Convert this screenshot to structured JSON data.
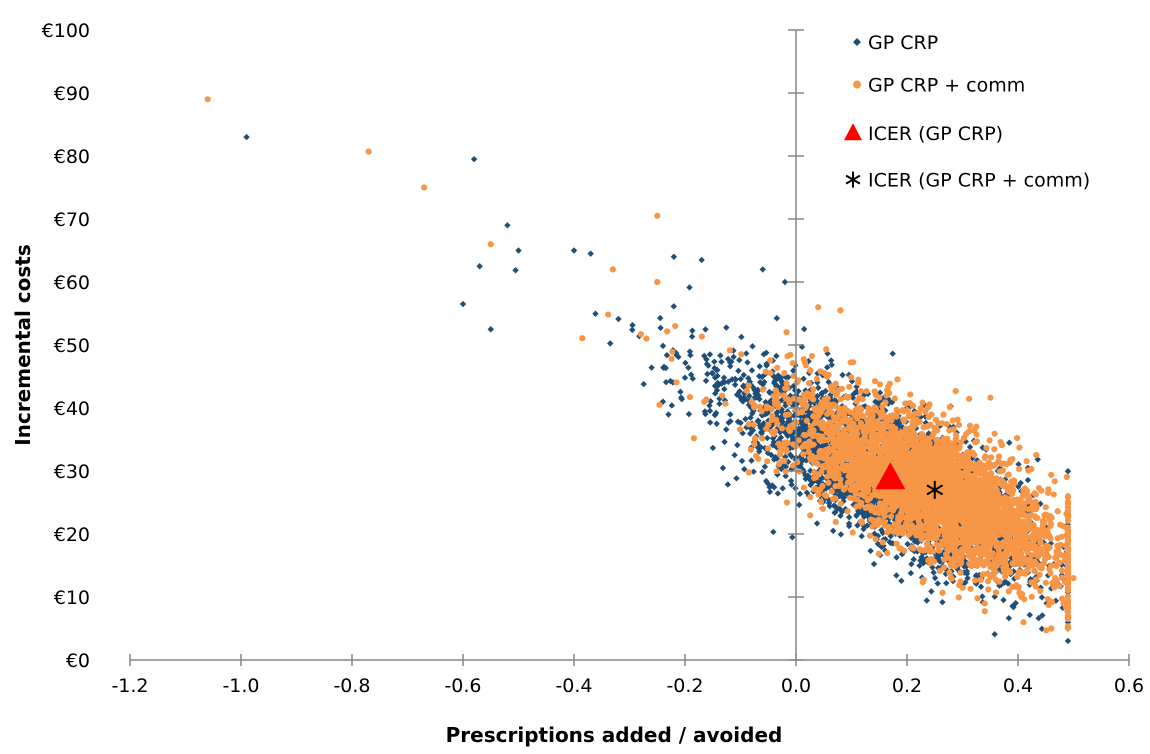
{
  "chart_data": {
    "type": "scatter",
    "xlabel": "Prescriptions added / avoided",
    "ylabel": "Incremental costs",
    "xlim": [
      -1.2,
      0.6
    ],
    "ylim": [
      0,
      100
    ],
    "x_ticks": [
      "-1.2",
      "-1.0",
      "-0.8",
      "-0.6",
      "-0.4",
      "-0.2",
      "0.0",
      "0.2",
      "0.4",
      "0.6"
    ],
    "y_ticks": [
      "€0",
      "€10",
      "€20",
      "€30",
      "€40",
      "€50",
      "€60",
      "€70",
      "€80",
      "€90",
      "€100"
    ],
    "legend_position": "top-right",
    "grid": false,
    "series": [
      {
        "name": "GP CRP",
        "marker": "diamond",
        "color": "#1F4E79",
        "cloud": {
          "x_mean": 0.17,
          "y_mean": 29,
          "x_sd": 0.13,
          "slope": -45,
          "y_resid_sd": 5.2,
          "n": 3200
        },
        "points": [
          {
            "x": -0.99,
            "y": 83
          },
          {
            "x": -0.58,
            "y": 79.5
          },
          {
            "x": -0.6,
            "y": 56.5
          },
          {
            "x": -0.55,
            "y": 52.5
          },
          {
            "x": -0.52,
            "y": 69
          },
          {
            "x": -0.57,
            "y": 62.5
          },
          {
            "x": -0.5,
            "y": 65
          },
          {
            "x": -0.4,
            "y": 65
          },
          {
            "x": -0.37,
            "y": 64.5
          },
          {
            "x": -0.22,
            "y": 64
          },
          {
            "x": -0.17,
            "y": 63.5
          },
          {
            "x": -0.06,
            "y": 62
          },
          {
            "x": -0.02,
            "y": 60
          }
        ]
      },
      {
        "name": "GP CRP + comm",
        "marker": "circle",
        "color": "#F79646",
        "cloud": {
          "x_mean": 0.25,
          "y_mean": 27,
          "x_sd": 0.115,
          "slope": -42,
          "y_resid_sd": 5.0,
          "n": 3500
        },
        "points": [
          {
            "x": -1.06,
            "y": 89
          },
          {
            "x": -0.77,
            "y": 80.7
          },
          {
            "x": -0.67,
            "y": 75
          },
          {
            "x": -0.25,
            "y": 70.5
          },
          {
            "x": -0.55,
            "y": 66
          },
          {
            "x": -0.33,
            "y": 62
          },
          {
            "x": -0.25,
            "y": 60
          },
          {
            "x": 0.04,
            "y": 56
          },
          {
            "x": 0.08,
            "y": 55.5
          },
          {
            "x": 0.46,
            "y": 5
          },
          {
            "x": 0.41,
            "y": 6
          },
          {
            "x": 0.5,
            "y": 13
          }
        ]
      }
    ],
    "icers": [
      {
        "name": "ICER (GP CRP)",
        "marker": "triangle",
        "color": "#FF0000",
        "x": 0.17,
        "y": 29
      },
      {
        "name": "ICER (GP CRP + comm)",
        "marker": "asterisk",
        "color": "#000000",
        "x": 0.25,
        "y": 27
      }
    ]
  }
}
